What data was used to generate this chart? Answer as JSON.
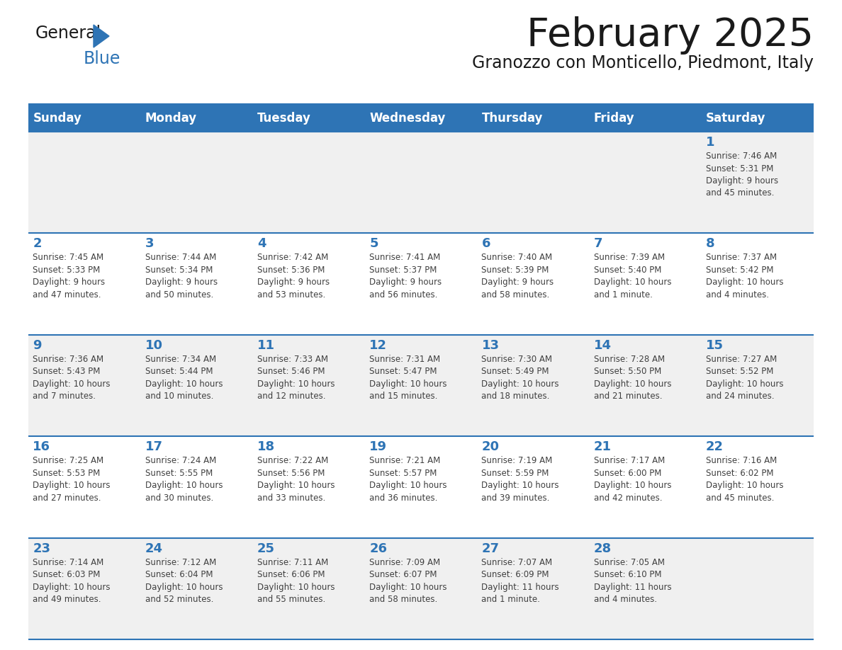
{
  "title": "February 2025",
  "subtitle": "Granozzo con Monticello, Piedmont, Italy",
  "days_of_week": [
    "Sunday",
    "Monday",
    "Tuesday",
    "Wednesday",
    "Thursday",
    "Friday",
    "Saturday"
  ],
  "header_bg": "#2E74B5",
  "header_text": "#FFFFFF",
  "cell_bg_odd": "#F0F0F0",
  "cell_bg_even": "#FFFFFF",
  "divider_color": "#2E74B5",
  "day_num_color": "#2E74B5",
  "text_color": "#404040",
  "title_color": "#1a1a1a",
  "logo_general_color": "#1a1a1a",
  "logo_blue_color": "#2E74B5",
  "logo_triangle_color": "#2E74B5",
  "weeks": [
    [
      {
        "day": null,
        "info": ""
      },
      {
        "day": null,
        "info": ""
      },
      {
        "day": null,
        "info": ""
      },
      {
        "day": null,
        "info": ""
      },
      {
        "day": null,
        "info": ""
      },
      {
        "day": null,
        "info": ""
      },
      {
        "day": 1,
        "info": "Sunrise: 7:46 AM\nSunset: 5:31 PM\nDaylight: 9 hours\nand 45 minutes."
      }
    ],
    [
      {
        "day": 2,
        "info": "Sunrise: 7:45 AM\nSunset: 5:33 PM\nDaylight: 9 hours\nand 47 minutes."
      },
      {
        "day": 3,
        "info": "Sunrise: 7:44 AM\nSunset: 5:34 PM\nDaylight: 9 hours\nand 50 minutes."
      },
      {
        "day": 4,
        "info": "Sunrise: 7:42 AM\nSunset: 5:36 PM\nDaylight: 9 hours\nand 53 minutes."
      },
      {
        "day": 5,
        "info": "Sunrise: 7:41 AM\nSunset: 5:37 PM\nDaylight: 9 hours\nand 56 minutes."
      },
      {
        "day": 6,
        "info": "Sunrise: 7:40 AM\nSunset: 5:39 PM\nDaylight: 9 hours\nand 58 minutes."
      },
      {
        "day": 7,
        "info": "Sunrise: 7:39 AM\nSunset: 5:40 PM\nDaylight: 10 hours\nand 1 minute."
      },
      {
        "day": 8,
        "info": "Sunrise: 7:37 AM\nSunset: 5:42 PM\nDaylight: 10 hours\nand 4 minutes."
      }
    ],
    [
      {
        "day": 9,
        "info": "Sunrise: 7:36 AM\nSunset: 5:43 PM\nDaylight: 10 hours\nand 7 minutes."
      },
      {
        "day": 10,
        "info": "Sunrise: 7:34 AM\nSunset: 5:44 PM\nDaylight: 10 hours\nand 10 minutes."
      },
      {
        "day": 11,
        "info": "Sunrise: 7:33 AM\nSunset: 5:46 PM\nDaylight: 10 hours\nand 12 minutes."
      },
      {
        "day": 12,
        "info": "Sunrise: 7:31 AM\nSunset: 5:47 PM\nDaylight: 10 hours\nand 15 minutes."
      },
      {
        "day": 13,
        "info": "Sunrise: 7:30 AM\nSunset: 5:49 PM\nDaylight: 10 hours\nand 18 minutes."
      },
      {
        "day": 14,
        "info": "Sunrise: 7:28 AM\nSunset: 5:50 PM\nDaylight: 10 hours\nand 21 minutes."
      },
      {
        "day": 15,
        "info": "Sunrise: 7:27 AM\nSunset: 5:52 PM\nDaylight: 10 hours\nand 24 minutes."
      }
    ],
    [
      {
        "day": 16,
        "info": "Sunrise: 7:25 AM\nSunset: 5:53 PM\nDaylight: 10 hours\nand 27 minutes."
      },
      {
        "day": 17,
        "info": "Sunrise: 7:24 AM\nSunset: 5:55 PM\nDaylight: 10 hours\nand 30 minutes."
      },
      {
        "day": 18,
        "info": "Sunrise: 7:22 AM\nSunset: 5:56 PM\nDaylight: 10 hours\nand 33 minutes."
      },
      {
        "day": 19,
        "info": "Sunrise: 7:21 AM\nSunset: 5:57 PM\nDaylight: 10 hours\nand 36 minutes."
      },
      {
        "day": 20,
        "info": "Sunrise: 7:19 AM\nSunset: 5:59 PM\nDaylight: 10 hours\nand 39 minutes."
      },
      {
        "day": 21,
        "info": "Sunrise: 7:17 AM\nSunset: 6:00 PM\nDaylight: 10 hours\nand 42 minutes."
      },
      {
        "day": 22,
        "info": "Sunrise: 7:16 AM\nSunset: 6:02 PM\nDaylight: 10 hours\nand 45 minutes."
      }
    ],
    [
      {
        "day": 23,
        "info": "Sunrise: 7:14 AM\nSunset: 6:03 PM\nDaylight: 10 hours\nand 49 minutes."
      },
      {
        "day": 24,
        "info": "Sunrise: 7:12 AM\nSunset: 6:04 PM\nDaylight: 10 hours\nand 52 minutes."
      },
      {
        "day": 25,
        "info": "Sunrise: 7:11 AM\nSunset: 6:06 PM\nDaylight: 10 hours\nand 55 minutes."
      },
      {
        "day": 26,
        "info": "Sunrise: 7:09 AM\nSunset: 6:07 PM\nDaylight: 10 hours\nand 58 minutes."
      },
      {
        "day": 27,
        "info": "Sunrise: 7:07 AM\nSunset: 6:09 PM\nDaylight: 11 hours\nand 1 minute."
      },
      {
        "day": 28,
        "info": "Sunrise: 7:05 AM\nSunset: 6:10 PM\nDaylight: 11 hours\nand 4 minutes."
      },
      {
        "day": null,
        "info": ""
      }
    ]
  ]
}
